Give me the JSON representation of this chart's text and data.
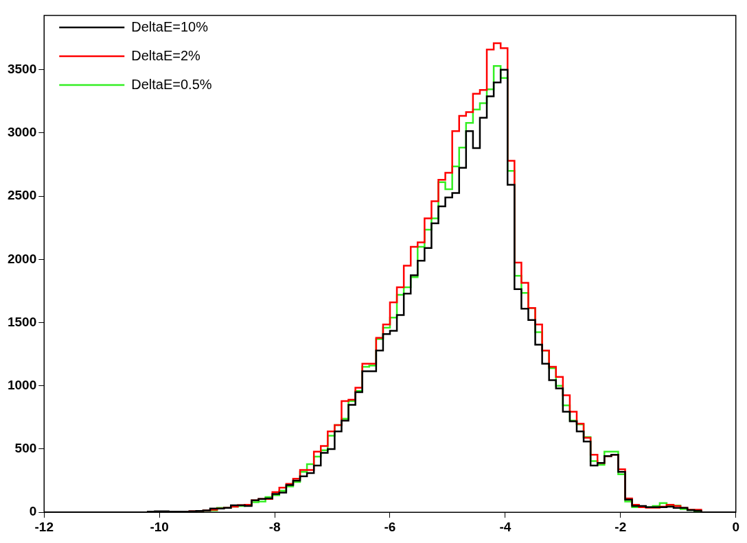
{
  "chart_data": {
    "type": "histogram",
    "bins": [
      -12,
      -11.88,
      -11.76,
      -11.64,
      -11.52,
      -11.4,
      -11.28,
      -11.16,
      -11.04,
      -10.92,
      -10.8,
      -10.68,
      -10.56,
      -10.44,
      -10.32,
      -10.2,
      -10.08,
      -9.96,
      -9.84,
      -9.72,
      -9.6,
      -9.48,
      -9.36,
      -9.24,
      -9.12,
      -9,
      -8.88,
      -8.76,
      -8.64,
      -8.52,
      -8.4,
      -8.28,
      -8.16,
      -8.04,
      -7.92,
      -7.8,
      -7.68,
      -7.56,
      -7.44,
      -7.32,
      -7.2,
      -7.08,
      -6.96,
      -6.84,
      -6.72,
      -6.6,
      -6.48,
      -6.36,
      -6.24,
      -6.12,
      -6,
      -5.88,
      -5.76,
      -5.64,
      -5.52,
      -5.4,
      -5.28,
      -5.16,
      -5.04,
      -4.92,
      -4.8,
      -4.68,
      -4.56,
      -4.44,
      -4.32,
      -4.2,
      -4.08,
      -3.96,
      -3.84,
      -3.72,
      -3.6,
      -3.48,
      -3.36,
      -3.24,
      -3.12,
      -3,
      -2.88,
      -2.76,
      -2.64,
      -2.52,
      -2.4,
      -2.28,
      -2.16,
      -2.04,
      -1.92,
      -1.8,
      -1.68,
      -1.56,
      -1.44,
      -1.32,
      -1.2,
      -1.08,
      -0.96,
      -0.84,
      -0.72,
      -0.6,
      -0.48,
      -0.36,
      -0.24,
      -0.12,
      0
    ],
    "series": [
      {
        "name": "DeltaE=10%",
        "color": "#000000",
        "values": [
          0,
          0,
          0,
          0,
          0,
          0,
          0,
          0,
          0,
          0,
          0,
          0,
          0,
          0,
          0,
          5,
          8,
          8,
          5,
          5,
          5,
          8,
          10,
          15,
          30,
          30,
          35,
          55,
          55,
          50,
          95,
          105,
          110,
          145,
          155,
          215,
          250,
          285,
          310,
          370,
          470,
          500,
          640,
          725,
          850,
          950,
          1115,
          1115,
          1280,
          1410,
          1435,
          1560,
          1730,
          1875,
          1990,
          2090,
          2285,
          2420,
          2490,
          2525,
          2725,
          3015,
          2880,
          3120,
          3290,
          3400,
          3500,
          2590,
          1765,
          1610,
          1520,
          1325,
          1175,
          1045,
          980,
          795,
          720,
          640,
          560,
          370,
          390,
          445,
          455,
          320,
          100,
          50,
          50,
          40,
          40,
          40,
          45,
          35,
          35,
          17,
          12,
          0,
          0,
          0,
          0,
          0
        ]
      },
      {
        "name": "DeltaE=2%",
        "color": "#ff0000",
        "values": [
          0,
          0,
          0,
          0,
          0,
          0,
          0,
          0,
          0,
          0,
          0,
          0,
          0,
          0,
          0,
          3,
          5,
          5,
          5,
          5,
          5,
          8,
          10,
          15,
          20,
          30,
          35,
          45,
          57,
          60,
          95,
          105,
          105,
          160,
          195,
          225,
          265,
          335,
          335,
          480,
          525,
          640,
          690,
          880,
          890,
          985,
          1175,
          1175,
          1380,
          1485,
          1660,
          1780,
          1950,
          2100,
          2135,
          2325,
          2460,
          2630,
          2685,
          3015,
          3135,
          3165,
          3310,
          3340,
          3660,
          3710,
          3670,
          2780,
          1975,
          1815,
          1615,
          1485,
          1280,
          1150,
          1070,
          925,
          795,
          700,
          590,
          455,
          390,
          445,
          455,
          340,
          110,
          60,
          40,
          37,
          37,
          45,
          60,
          50,
          35,
          20,
          20,
          0,
          0,
          0,
          0,
          0
        ]
      },
      {
        "name": "DeltaE=0.5%",
        "color": "#33ee22",
        "values": [
          0,
          0,
          0,
          0,
          0,
          0,
          0,
          0,
          0,
          0,
          0,
          0,
          0,
          0,
          0,
          3,
          5,
          5,
          5,
          5,
          5,
          5,
          8,
          12,
          15,
          35,
          35,
          45,
          50,
          57,
          80,
          85,
          120,
          135,
          170,
          205,
          240,
          320,
          380,
          440,
          490,
          605,
          690,
          740,
          880,
          960,
          1150,
          1160,
          1370,
          1460,
          1540,
          1720,
          1780,
          1860,
          2100,
          2235,
          2325,
          2610,
          2555,
          2735,
          2885,
          3080,
          3185,
          3235,
          3345,
          3530,
          3435,
          2700,
          1870,
          1735,
          1615,
          1425,
          1280,
          1140,
          1000,
          845,
          725,
          695,
          595,
          405,
          375,
          480,
          480,
          300,
          85,
          40,
          40,
          40,
          50,
          73,
          55,
          52,
          25,
          17,
          8,
          0,
          0,
          0,
          0,
          0
        ]
      }
    ],
    "xlim": [
      -12,
      0
    ],
    "ylim": [
      0,
      3930
    ],
    "xticks": [
      -12,
      -10,
      -8,
      -6,
      -4,
      -2,
      0
    ],
    "yticks": [
      0,
      500,
      1000,
      1500,
      2000,
      2500,
      3000,
      3500
    ],
    "legend": "top left"
  }
}
